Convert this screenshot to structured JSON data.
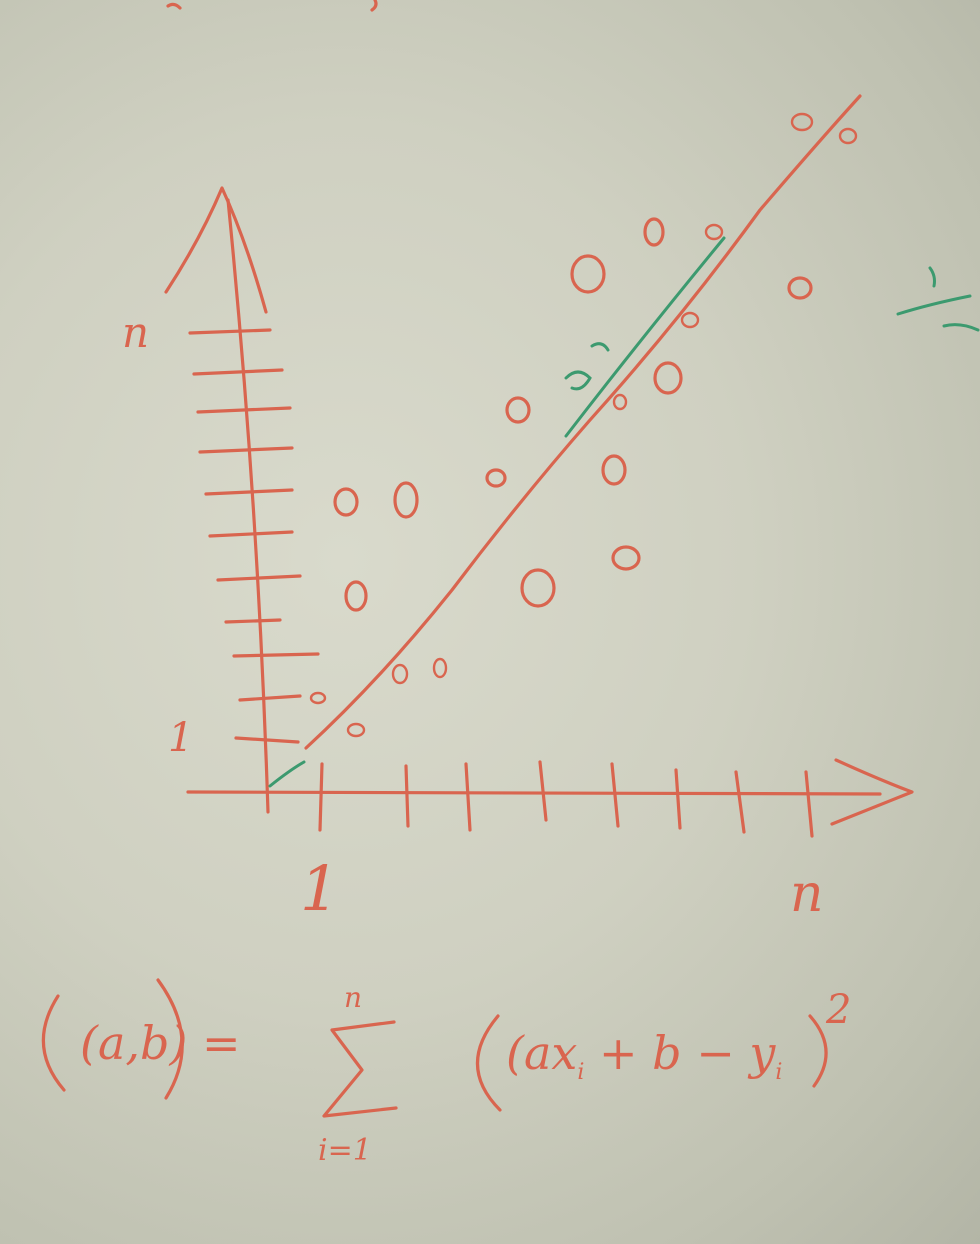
{
  "whiteboard": {
    "y_axis_top_label": "n",
    "y_axis_one_label": "1",
    "x_axis_one_label": "1",
    "x_axis_end_label": "n",
    "formula": {
      "lhs": "(a,b) =",
      "sum_symbol": "Σ",
      "sum_upper": "n",
      "sum_lower": "i=1",
      "term": "(ax",
      "term_sub1": "i",
      "term_mid": " + b − y",
      "term_sub2": "i",
      "term_close": ")",
      "exponent": "2"
    },
    "colors": {
      "marker": "#d9654f",
      "green_marker": "#3c9a6f",
      "board": "#d5d6c8"
    }
  }
}
